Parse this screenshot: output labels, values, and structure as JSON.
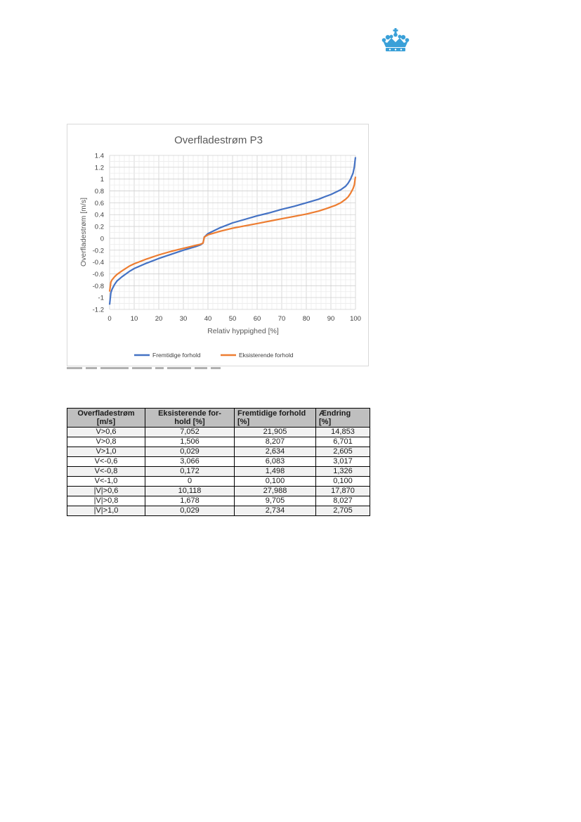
{
  "chart_data": {
    "type": "line",
    "title": "Overfladestrøm P3",
    "xlabel": "Relativ hyppighed [%]",
    "ylabel": "Overfladestrøm [m/s]",
    "xlim": [
      0,
      100
    ],
    "ylim": [
      -1.2,
      1.4
    ],
    "x_ticks": [
      "0",
      "10",
      "20",
      "30",
      "40",
      "50",
      "60",
      "70",
      "80",
      "90",
      "100"
    ],
    "y_ticks": [
      "1.4",
      "1.2",
      "1",
      "0.8",
      "0.6",
      "0.4",
      "0.2",
      "0",
      "-0.2",
      "-0.4",
      "-0.6",
      "-0.8",
      "-1",
      "-1.2"
    ],
    "grid": true,
    "legend_position": "bottom",
    "series": [
      {
        "name": "Fremtidige forhold",
        "color": "#4472c4",
        "x": [
          0,
          0.5,
          1,
          2,
          3,
          5,
          8,
          10,
          15,
          20,
          25,
          30,
          35,
          37,
          38,
          38.5,
          40,
          45,
          50,
          55,
          60,
          65,
          70,
          75,
          80,
          85,
          88,
          90,
          92,
          94,
          96,
          97,
          98,
          99,
          99.5,
          100
        ],
        "y": [
          -1.12,
          -0.92,
          -0.86,
          -0.78,
          -0.72,
          -0.65,
          -0.56,
          -0.51,
          -0.42,
          -0.34,
          -0.27,
          -0.2,
          -0.14,
          -0.11,
          -0.08,
          0.02,
          0.08,
          0.18,
          0.26,
          0.32,
          0.38,
          0.43,
          0.49,
          0.54,
          0.6,
          0.66,
          0.71,
          0.74,
          0.78,
          0.82,
          0.88,
          0.93,
          1.0,
          1.1,
          1.2,
          1.37
        ]
      },
      {
        "name": "Eksisterende forhold",
        "color": "#ed7d31",
        "x": [
          0,
          0.5,
          1,
          2,
          3,
          5,
          8,
          10,
          15,
          20,
          25,
          30,
          35,
          37,
          38,
          38.5,
          40,
          45,
          50,
          55,
          60,
          65,
          70,
          75,
          80,
          85,
          88,
          90,
          92,
          94,
          96,
          97,
          98,
          99,
          99.5,
          100
        ],
        "y": [
          -0.9,
          -0.74,
          -0.7,
          -0.65,
          -0.61,
          -0.55,
          -0.47,
          -0.43,
          -0.35,
          -0.28,
          -0.22,
          -0.17,
          -0.12,
          -0.1,
          -0.08,
          0.02,
          0.06,
          0.12,
          0.17,
          0.21,
          0.25,
          0.29,
          0.33,
          0.37,
          0.41,
          0.46,
          0.5,
          0.53,
          0.56,
          0.6,
          0.66,
          0.7,
          0.76,
          0.84,
          0.9,
          1.04
        ]
      }
    ]
  },
  "table": {
    "headers": [
      {
        "line1": "Overfladestrøm",
        "line2": "[m/s]"
      },
      {
        "line1": "Eksisterende for-",
        "line2": "hold [%]"
      },
      {
        "line1": "Fremtidige forhold",
        "line2": "[%]"
      },
      {
        "line1": "Ændring",
        "line2": "[%]"
      }
    ],
    "rows": [
      [
        "V>0,6",
        "7,052",
        "21,905",
        "14,853"
      ],
      [
        "V>0,8",
        "1,506",
        "8,207",
        "6,701"
      ],
      [
        "V>1,0",
        "0,029",
        "2,634",
        "2,605"
      ],
      [
        "V<-0,6",
        "3,066",
        "6,083",
        "3,017"
      ],
      [
        "V<-0,8",
        "0,172",
        "1,498",
        "1,326"
      ],
      [
        "V<-1,0",
        "0",
        "0,100",
        "0,100"
      ],
      [
        "|V|>0,6",
        "10,118",
        "27,988",
        "17,870"
      ],
      [
        "|V|>0,8",
        "1,678",
        "9,705",
        "8,027"
      ],
      [
        "|V|>1,0",
        "0,029",
        "2,734",
        "2,705"
      ]
    ]
  },
  "logo": {
    "icon": "crown-icon",
    "color": "#3aa0d8"
  }
}
